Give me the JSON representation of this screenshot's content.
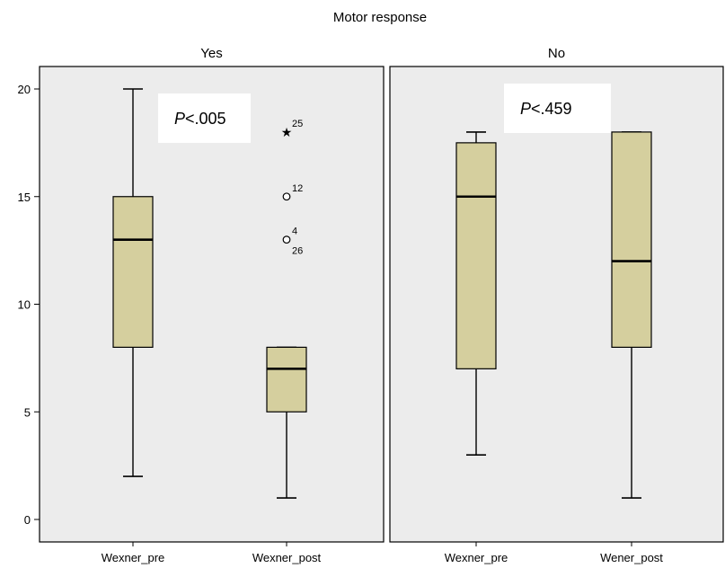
{
  "chart_data": {
    "type": "box",
    "title": "Motor response",
    "ylim": [
      0,
      20
    ],
    "yticks": [
      0,
      5,
      10,
      15,
      20
    ],
    "grid": false,
    "colors": {
      "box_fill": "#d5cf9e",
      "panel_bg": "#ececec",
      "stroke": "#000000"
    },
    "panels": [
      {
        "name": "Yes",
        "p_value": {
          "italic": "P",
          "rest": "<.005"
        },
        "categories": [
          "Wexner_pre",
          "Wexner_post"
        ],
        "boxes": [
          {
            "label": "Wexner_pre",
            "min": 2,
            "q1": 8,
            "median": 13,
            "q3": 15,
            "max": 20,
            "outliers": []
          },
          {
            "label": "Wexner_post",
            "min": 1,
            "q1": 5,
            "median": 7,
            "q3": 8,
            "max": 8,
            "outliers": [
              {
                "value": 18,
                "marker": "star",
                "labels": [
                  "25"
                ]
              },
              {
                "value": 15,
                "marker": "circle",
                "labels": [
                  "12"
                ]
              },
              {
                "value": 13,
                "marker": "circle",
                "labels": [
                  "4",
                  "26"
                ]
              }
            ]
          }
        ]
      },
      {
        "name": "No",
        "p_value": {
          "italic": "P",
          "rest": "<.459"
        },
        "categories": [
          "Wexner_pre",
          "Wener_post"
        ],
        "boxes": [
          {
            "label": "Wexner_pre",
            "min": 3,
            "q1": 7,
            "median": 15,
            "q3": 17.5,
            "max": 18,
            "outliers": []
          },
          {
            "label": "Wener_post",
            "min": 1,
            "q1": 8,
            "median": 12,
            "q3": 18,
            "max": 18,
            "outliers": []
          }
        ]
      }
    ]
  }
}
